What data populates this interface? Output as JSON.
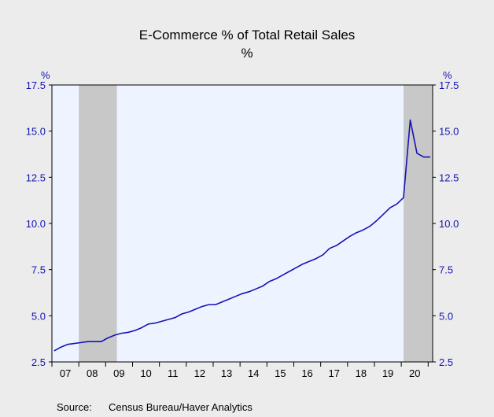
{
  "colors": {
    "background": "#ececec",
    "plot_background": "#eef4ff",
    "recession_shade": "#c8c8c8",
    "line": "#1414b4",
    "axis_text": "#1414b4",
    "axis_line": "#000000"
  },
  "source_label": "Source:",
  "source_text": "Census Bureau/Haver Analytics",
  "chart_data": {
    "type": "line",
    "title": "E-Commerce % of Total Retail Sales",
    "subtitle": "%",
    "y_unit_left": "%",
    "y_unit_right": "%",
    "ylim": [
      2.5,
      17.5
    ],
    "y_ticks": [
      2.5,
      5.0,
      7.5,
      10.0,
      12.5,
      15.0,
      17.5
    ],
    "y_tick_labels": [
      "2.5",
      "5.0",
      "7.5",
      "10.0",
      "12.5",
      "15.0",
      "17.5"
    ],
    "xlim": [
      "2007-01",
      "2021-03"
    ],
    "x_tick_labels": [
      "07",
      "08",
      "09",
      "10",
      "11",
      "12",
      "13",
      "14",
      "15",
      "16",
      "17",
      "18",
      "19",
      "20"
    ],
    "shaded_periods": [
      {
        "start": "2008-01",
        "end": "2009-06"
      },
      {
        "start": "2020-02",
        "end": "2021-03"
      }
    ],
    "grid": false,
    "legend": "none",
    "series": [
      {
        "x": [
          "2007-Q1",
          "2007-Q2",
          "2007-Q3",
          "2007-Q4",
          "2008-Q1",
          "2008-Q2",
          "2008-Q3",
          "2008-Q4",
          "2009-Q1",
          "2009-Q2",
          "2009-Q3",
          "2009-Q4",
          "2010-Q1",
          "2010-Q2",
          "2010-Q3",
          "2010-Q4",
          "2011-Q1",
          "2011-Q2",
          "2011-Q3",
          "2011-Q4",
          "2012-Q1",
          "2012-Q2",
          "2012-Q3",
          "2012-Q4",
          "2013-Q1",
          "2013-Q2",
          "2013-Q3",
          "2013-Q4",
          "2014-Q1",
          "2014-Q2",
          "2014-Q3",
          "2014-Q4",
          "2015-Q1",
          "2015-Q2",
          "2015-Q3",
          "2015-Q4",
          "2016-Q1",
          "2016-Q2",
          "2016-Q3",
          "2016-Q4",
          "2017-Q1",
          "2017-Q2",
          "2017-Q3",
          "2017-Q4",
          "2018-Q1",
          "2018-Q2",
          "2018-Q3",
          "2018-Q4",
          "2019-Q1",
          "2019-Q2",
          "2019-Q3",
          "2019-Q4",
          "2020-Q1",
          "2020-Q2",
          "2020-Q3",
          "2020-Q4",
          "2021-Q1"
        ],
        "y": [
          3.1,
          3.3,
          3.45,
          3.5,
          3.55,
          3.6,
          3.6,
          3.6,
          3.8,
          3.95,
          4.05,
          4.1,
          4.2,
          4.35,
          4.55,
          4.6,
          4.7,
          4.8,
          4.9,
          5.1,
          5.2,
          5.35,
          5.5,
          5.6,
          5.6,
          5.75,
          5.9,
          6.05,
          6.2,
          6.3,
          6.45,
          6.6,
          6.85,
          7.0,
          7.2,
          7.4,
          7.6,
          7.8,
          7.95,
          8.1,
          8.3,
          8.65,
          8.8,
          9.05,
          9.3,
          9.5,
          9.65,
          9.85,
          10.15,
          10.5,
          10.85,
          11.05,
          11.4,
          15.6,
          13.8,
          13.6,
          13.6
        ]
      }
    ]
  }
}
